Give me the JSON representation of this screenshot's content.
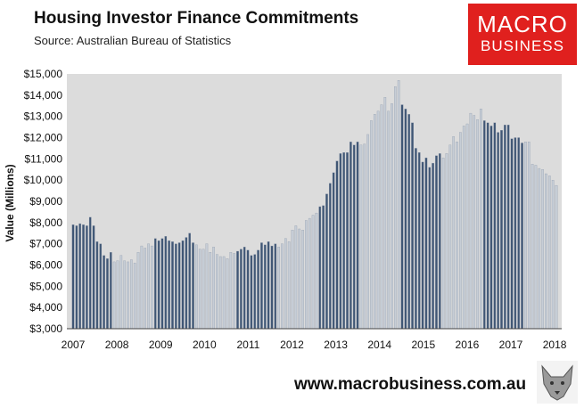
{
  "title": "Housing Investor Finance Commitments",
  "subtitle": "Source: Australian Bureau of Statistics",
  "logo": {
    "line1": "MACRO",
    "line2": "BUSINESS"
  },
  "footer": "www.macrobusiness.com.au",
  "colors": {
    "bar_dark": "#3f5675",
    "bar_light": "#c6cdd6",
    "plot_bg": "#dcdcdc",
    "logo_bg": "#e0201e"
  },
  "chart_data": {
    "type": "bar",
    "title": "Housing Investor Finance Commitments",
    "ylabel": "Value (Millions)",
    "xlabel": "",
    "ylim": [
      3000,
      15000
    ],
    "yticks": [
      "$3,000",
      "$4,000",
      "$5,000",
      "$6,000",
      "$7,000",
      "$8,000",
      "$9,000",
      "$10,000",
      "$11,000",
      "$12,000",
      "$13,000",
      "$14,000",
      "$15,000"
    ],
    "xticks": [
      "2007",
      "2008",
      "2009",
      "2010",
      "2011",
      "2012",
      "2013",
      "2014",
      "2015",
      "2016",
      "2017",
      "2018"
    ],
    "grid": false,
    "legend": "none",
    "series": [
      {
        "values": [
          7900,
          7850,
          7950,
          7900,
          7850,
          8250,
          7850,
          7100,
          7000,
          6450,
          6300,
          6600,
          6150,
          6200,
          6450,
          6200,
          6150,
          6250,
          6100,
          6600,
          6900,
          6800,
          7000,
          6900,
          7250,
          7150,
          7250,
          7350,
          7150,
          7100,
          7000,
          7050,
          7150,
          7300,
          7500,
          7050,
          6950,
          6750,
          6750,
          7000,
          6600,
          6850,
          6500,
          6400,
          6400,
          6300,
          6600,
          6550,
          6650,
          6750,
          6850,
          6700,
          6450,
          6500,
          6700,
          7050,
          6950,
          7100,
          6900,
          7000,
          6850,
          7000,
          7250,
          7100,
          7650,
          7850,
          7700,
          7650,
          8100,
          8200,
          8350,
          8450,
          8750,
          8800,
          9350,
          9850,
          10350,
          10900,
          11250,
          11300,
          11300,
          11800,
          11650,
          11800,
          11650,
          11700,
          12150,
          12800,
          13100,
          13250,
          13550,
          13900,
          13250,
          13600,
          14400,
          14700,
          13550,
          13350,
          13100,
          12700,
          11500,
          11300,
          10850,
          11050,
          10600,
          10800,
          11150,
          11250,
          11050,
          11250,
          11650,
          12050,
          11800,
          12250,
          12550,
          12650,
          13150,
          13050,
          12850,
          13350,
          12800,
          12700,
          12550,
          12700,
          12250,
          12350,
          12600,
          12600,
          11950,
          12000,
          12000,
          11750,
          11800,
          11800,
          10750,
          10700,
          10550,
          10500,
          10300,
          10200,
          10000,
          9750
        ]
      }
    ]
  }
}
